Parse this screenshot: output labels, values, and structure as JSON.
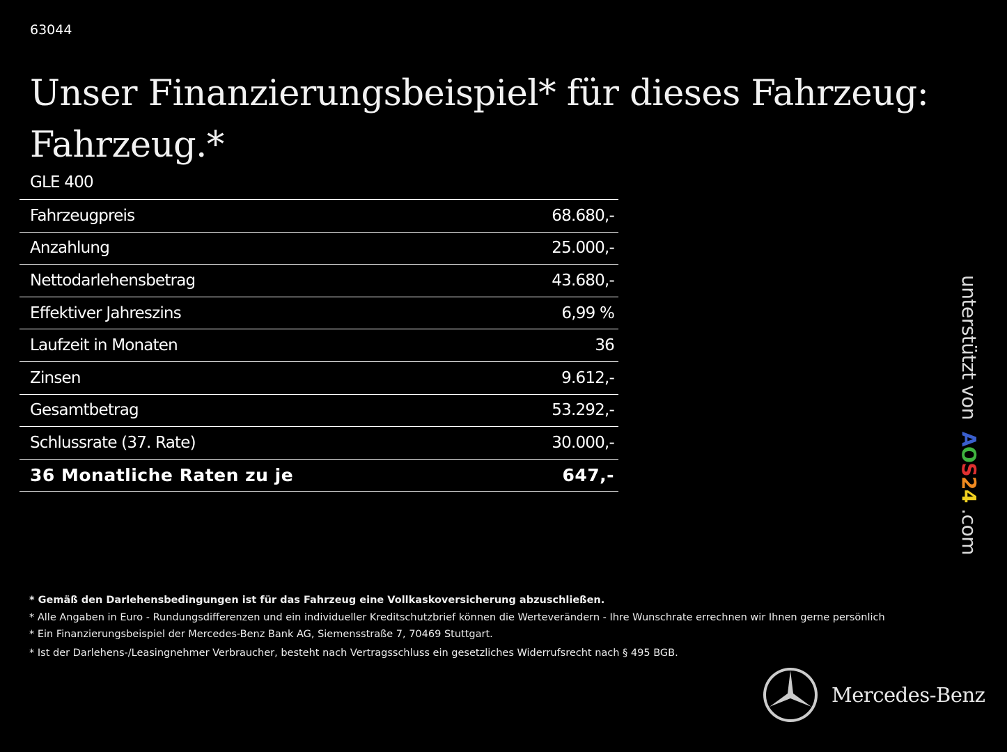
{
  "code": "63044",
  "title_line1": "Unser Finanzierungsbeispiel* für dieses Fahrzeug:",
  "title_line2": "Fahrzeug.*",
  "model": "GLE 400",
  "rows": [
    {
      "label": "Fahrzeugpreis",
      "value": "68.680,-"
    },
    {
      "label": "Anzahlung",
      "value": "25.000,-"
    },
    {
      "label": "Nettodarlehensbetrag",
      "value": "43.680,-"
    },
    {
      "label": "Effektiver Jahreszins",
      "value": "6,99 %"
    },
    {
      "label": "Laufzeit in Monaten",
      "value": "36"
    },
    {
      "label": "Zinsen",
      "value": "9.612,-"
    },
    {
      "label": "Gesamtbetrag",
      "value": "53.292,-"
    },
    {
      "label": "Schlussrate (37. Rate)",
      "value": "30.000,-"
    }
  ],
  "total": {
    "label": "36 Monatliche Raten zu je",
    "value": "647,-"
  },
  "supported": {
    "prefix": "unterstützt von",
    "letters": [
      "A",
      "O",
      "S",
      "2",
      "4"
    ],
    "suffix": ".com",
    "colors": [
      "#3a5fcd",
      "#3fb43f",
      "#e03030",
      "#f08a20",
      "#f0d020"
    ]
  },
  "notes": [
    "* Gemäß den Darlehensbedingungen ist für das Fahrzeug eine Vollkaskoversicherung abzuschließen.",
    "* Alle Angaben in Euro - Rundungsdifferenzen und ein individueller Kreditschutzbrief können die Werteverändern - Ihre Wunschrate errechnen wir Ihnen gerne persönlich",
    "* Ein Finanzierungsbeispiel der Mercedes-Benz Bank AG, Siemensstraße 7, 70469 Stuttgart.",
    "* Ist der Darlehens-/Leasingnehmer Verbraucher, besteht nach Vertragsschluss ein gesetzliches Widerrufsrecht nach § 495 BGB."
  ],
  "brand": "Mercedes-Benz"
}
